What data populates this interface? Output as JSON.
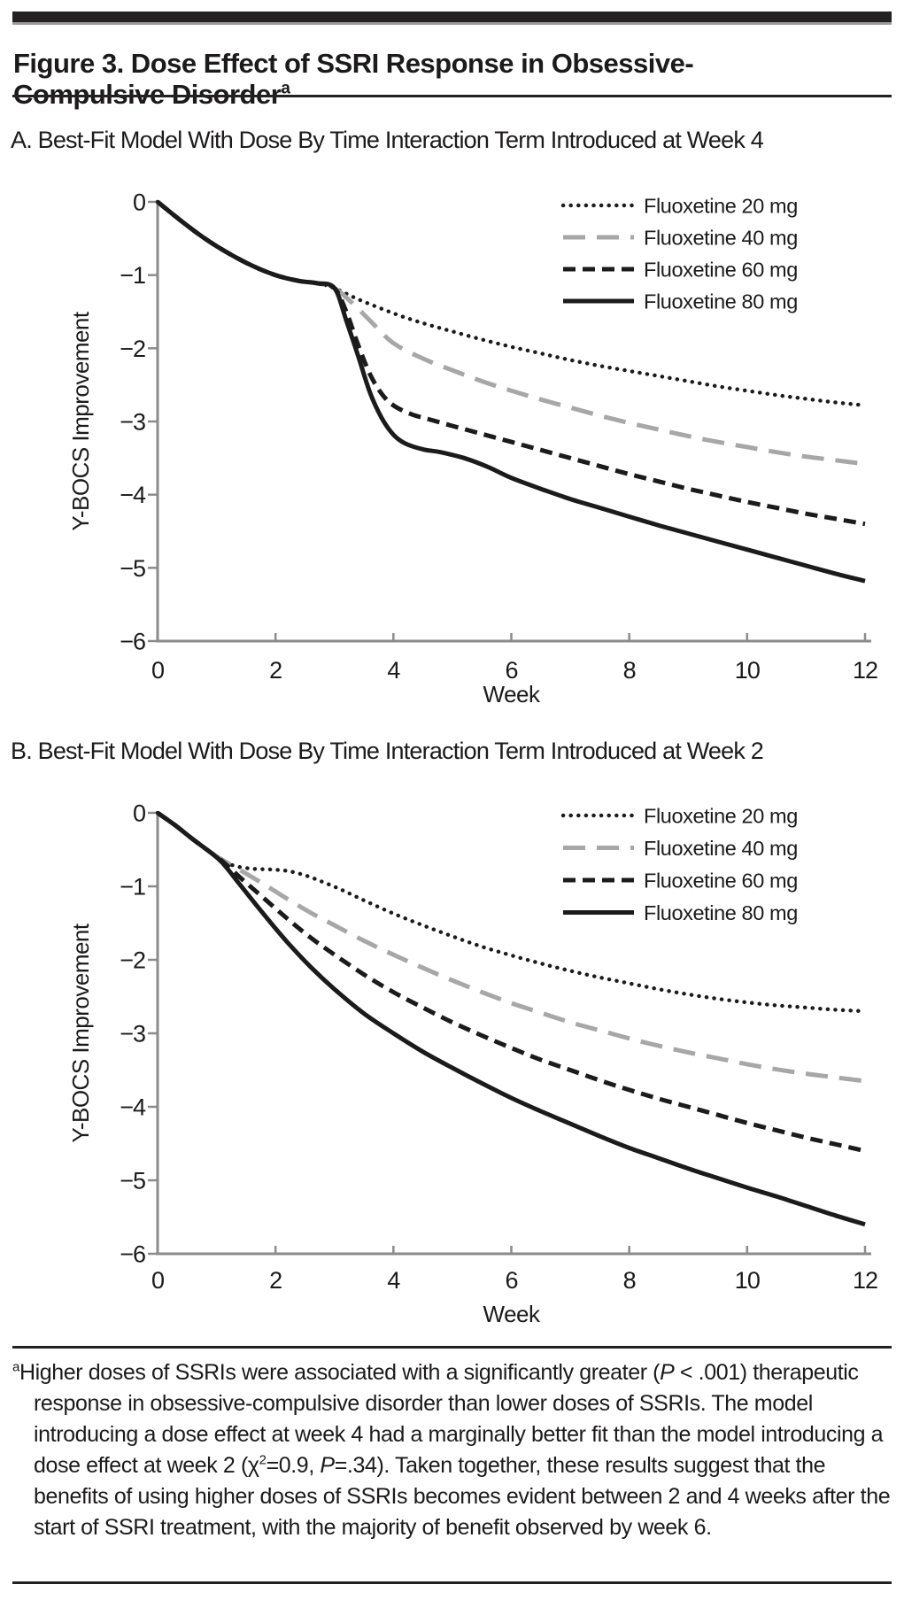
{
  "page": {
    "title_text": "Figure 3. Dose Effect of SSRI Response in Obsessive-Compulsive Disorder",
    "title_superscript": "a"
  },
  "chart_data": [
    {
      "type": "line",
      "panel": "A",
      "title": "A. Best-Fit Model With Dose By Time Interaction Term Introduced at Week 4",
      "xlabel": "Week",
      "ylabel": "Y-BOCS Improvement",
      "xlim": [
        0,
        12
      ],
      "ylim": [
        -6,
        0
      ],
      "x_ticks": [
        0,
        2,
        4,
        6,
        8,
        10,
        12
      ],
      "y_ticks": [
        0,
        -1,
        -2,
        -3,
        -4,
        -5,
        -6
      ],
      "y_tick_labels": [
        "0",
        "−1",
        "−2",
        "−3",
        "−4",
        "−5",
        "−6"
      ],
      "grid": false,
      "legend_position": "top-right-inside",
      "series": [
        {
          "name": "Fluoxetine 20 mg",
          "line_style": "dotted",
          "color": "#1b1b1b",
          "x": [
            0,
            0.4,
            0.8,
            1.2,
            1.6,
            2.0,
            2.4,
            2.7,
            3.0,
            3.4,
            3.8,
            4.2,
            4.6,
            5,
            5.5,
            6,
            6.5,
            7,
            7.5,
            8,
            8.5,
            9,
            9.5,
            10,
            10.5,
            11,
            11.5,
            12
          ],
          "y": [
            0,
            -0.26,
            -0.5,
            -0.7,
            -0.87,
            -1.0,
            -1.08,
            -1.11,
            -1.18,
            -1.33,
            -1.46,
            -1.58,
            -1.68,
            -1.77,
            -1.88,
            -1.98,
            -2.07,
            -2.16,
            -2.24,
            -2.31,
            -2.38,
            -2.45,
            -2.52,
            -2.58,
            -2.64,
            -2.69,
            -2.74,
            -2.78
          ]
        },
        {
          "name": "Fluoxetine 40 mg",
          "line_style": "long-dash",
          "color": "#a7a7a7",
          "x": [
            0,
            0.4,
            0.8,
            1.2,
            1.6,
            2.0,
            2.4,
            2.7,
            3.0,
            3.3,
            3.6,
            4,
            4.5,
            5,
            5.5,
            6,
            6.5,
            7,
            7.5,
            8,
            8.5,
            9,
            9.5,
            10,
            10.5,
            11,
            11.5,
            12
          ],
          "y": [
            0,
            -0.26,
            -0.5,
            -0.7,
            -0.87,
            -1.0,
            -1.08,
            -1.11,
            -1.18,
            -1.38,
            -1.62,
            -1.93,
            -2.14,
            -2.3,
            -2.45,
            -2.58,
            -2.7,
            -2.81,
            -2.92,
            -3.02,
            -3.11,
            -3.2,
            -3.28,
            -3.35,
            -3.42,
            -3.48,
            -3.53,
            -3.58
          ]
        },
        {
          "name": "Fluoxetine 60 mg",
          "line_style": "dashed",
          "color": "#1b1b1b",
          "x": [
            0,
            0.4,
            0.8,
            1.2,
            1.6,
            2.0,
            2.4,
            2.7,
            3.0,
            3.2,
            3.4,
            3.6,
            3.8,
            4,
            4.3,
            4.6,
            5,
            5.5,
            6,
            6.5,
            7,
            7.5,
            8,
            8.5,
            9,
            9.5,
            10,
            10.5,
            11,
            11.5,
            12
          ],
          "y": [
            0,
            -0.26,
            -0.5,
            -0.7,
            -0.87,
            -1.0,
            -1.08,
            -1.11,
            -1.18,
            -1.5,
            -1.95,
            -2.35,
            -2.62,
            -2.78,
            -2.9,
            -2.97,
            -3.06,
            -3.17,
            -3.28,
            -3.39,
            -3.5,
            -3.61,
            -3.72,
            -3.82,
            -3.92,
            -4.01,
            -4.1,
            -4.18,
            -4.26,
            -4.33,
            -4.4
          ]
        },
        {
          "name": "Fluoxetine 80 mg",
          "line_style": "solid",
          "color": "#1b1b1b",
          "x": [
            0,
            0.4,
            0.8,
            1.2,
            1.6,
            2.0,
            2.4,
            2.7,
            3.0,
            3.2,
            3.4,
            3.6,
            3.8,
            4.0,
            4.2,
            4.5,
            4.8,
            5.2,
            5.6,
            6,
            6.5,
            7,
            7.5,
            8,
            8.5,
            9,
            9.5,
            10,
            10.5,
            11,
            11.5,
            12
          ],
          "y": [
            0,
            -0.26,
            -0.5,
            -0.7,
            -0.87,
            -1.0,
            -1.08,
            -1.11,
            -1.18,
            -1.62,
            -2.1,
            -2.6,
            -2.95,
            -3.18,
            -3.3,
            -3.38,
            -3.42,
            -3.5,
            -3.62,
            -3.77,
            -3.92,
            -4.06,
            -4.18,
            -4.3,
            -4.42,
            -4.53,
            -4.64,
            -4.75,
            -4.86,
            -4.97,
            -5.08,
            -5.18
          ]
        }
      ]
    },
    {
      "type": "line",
      "panel": "B",
      "title": "B. Best-Fit Model With Dose By Time Interaction Term Introduced at Week 2",
      "xlabel": "Week",
      "ylabel": "Y-BOCS Improvement",
      "xlim": [
        0,
        12
      ],
      "ylim": [
        -6,
        0
      ],
      "x_ticks": [
        0,
        2,
        4,
        6,
        8,
        10,
        12
      ],
      "y_ticks": [
        0,
        -1,
        -2,
        -3,
        -4,
        -5,
        -6
      ],
      "y_tick_labels": [
        "0",
        "−1",
        "−2",
        "−3",
        "−4",
        "−5",
        "−6"
      ],
      "grid": false,
      "legend_position": "top-right-inside",
      "series": [
        {
          "name": "Fluoxetine 20 mg",
          "line_style": "dotted",
          "color": "#1b1b1b",
          "x": [
            0,
            0.3,
            0.6,
            0.9,
            1.1,
            1.3,
            1.6,
            1.9,
            2.2,
            2.5,
            2.8,
            3.1,
            3.5,
            4,
            4.5,
            5,
            5.5,
            6,
            6.5,
            7,
            7.5,
            8,
            8.5,
            9,
            9.5,
            10,
            10.5,
            11,
            11.5,
            12
          ],
          "y": [
            0,
            -0.17,
            -0.36,
            -0.54,
            -0.64,
            -0.72,
            -0.76,
            -0.77,
            -0.79,
            -0.85,
            -0.94,
            -1.04,
            -1.19,
            -1.37,
            -1.53,
            -1.68,
            -1.82,
            -1.94,
            -2.05,
            -2.15,
            -2.24,
            -2.32,
            -2.4,
            -2.47,
            -2.53,
            -2.58,
            -2.62,
            -2.65,
            -2.68,
            -2.7
          ]
        },
        {
          "name": "Fluoxetine 40 mg",
          "line_style": "long-dash",
          "color": "#a7a7a7",
          "x": [
            0,
            0.3,
            0.6,
            0.9,
            1.1,
            1.4,
            1.8,
            2.2,
            2.6,
            3,
            3.5,
            4,
            4.5,
            5,
            5.5,
            6,
            6.5,
            7,
            7.5,
            8,
            8.5,
            9,
            9.5,
            10,
            10.5,
            11,
            11.5,
            12
          ],
          "y": [
            0,
            -0.17,
            -0.36,
            -0.54,
            -0.64,
            -0.78,
            -0.97,
            -1.17,
            -1.36,
            -1.53,
            -1.74,
            -1.93,
            -2.11,
            -2.28,
            -2.44,
            -2.59,
            -2.72,
            -2.85,
            -2.96,
            -3.07,
            -3.17,
            -3.26,
            -3.34,
            -3.42,
            -3.49,
            -3.55,
            -3.6,
            -3.65
          ]
        },
        {
          "name": "Fluoxetine 60 mg",
          "line_style": "dashed",
          "color": "#1b1b1b",
          "x": [
            0,
            0.3,
            0.6,
            0.9,
            1.1,
            1.4,
            1.8,
            2.2,
            2.6,
            3,
            3.5,
            4,
            4.5,
            5,
            5.5,
            6,
            6.5,
            7,
            7.5,
            8,
            8.5,
            9,
            9.5,
            10,
            10.5,
            11,
            11.5,
            12
          ],
          "y": [
            0,
            -0.17,
            -0.36,
            -0.54,
            -0.66,
            -0.88,
            -1.16,
            -1.44,
            -1.7,
            -1.93,
            -2.2,
            -2.44,
            -2.65,
            -2.85,
            -3.03,
            -3.2,
            -3.36,
            -3.5,
            -3.64,
            -3.77,
            -3.89,
            -4.0,
            -4.11,
            -4.22,
            -4.32,
            -4.42,
            -4.51,
            -4.6
          ]
        },
        {
          "name": "Fluoxetine 80 mg",
          "line_style": "solid",
          "color": "#1b1b1b",
          "x": [
            0,
            0.3,
            0.6,
            0.9,
            1.1,
            1.4,
            1.8,
            2.2,
            2.6,
            3,
            3.5,
            4,
            4.5,
            5,
            5.5,
            6,
            6.5,
            7,
            7.5,
            8,
            8.5,
            9,
            9.5,
            10,
            10.5,
            11,
            11.5,
            12
          ],
          "y": [
            0,
            -0.17,
            -0.36,
            -0.54,
            -0.68,
            -0.98,
            -1.38,
            -1.76,
            -2.1,
            -2.4,
            -2.73,
            -3.0,
            -3.25,
            -3.47,
            -3.68,
            -3.88,
            -4.06,
            -4.23,
            -4.4,
            -4.56,
            -4.7,
            -4.84,
            -4.97,
            -5.1,
            -5.22,
            -5.35,
            -5.48,
            -5.6
          ]
        }
      ]
    }
  ],
  "footnote": {
    "segments": [
      {
        "t": "a",
        "s": "sup"
      },
      {
        "t": "Higher doses of SSRIs were associated with a significantly greater (",
        "s": "n"
      },
      {
        "t": "P",
        "s": "i"
      },
      {
        "t": " < .001) therapeutic response in obsessive-compulsive disorder than lower doses of SSRIs. The model introducing a dose effect at week 4 had a marginally better fit than the model introducing a dose effect at week 2 (χ",
        "s": "n"
      },
      {
        "t": "2",
        "s": "sup"
      },
      {
        "t": "=0.9, ",
        "s": "n"
      },
      {
        "t": "P",
        "s": "i"
      },
      {
        "t": "=.34). Taken together, these results suggest that the benefits of using higher doses of SSRIs becomes evident between 2 and 4 weeks after the start of SSRI treatment, with the majority of benefit observed by week 6.",
        "s": "n"
      }
    ]
  }
}
